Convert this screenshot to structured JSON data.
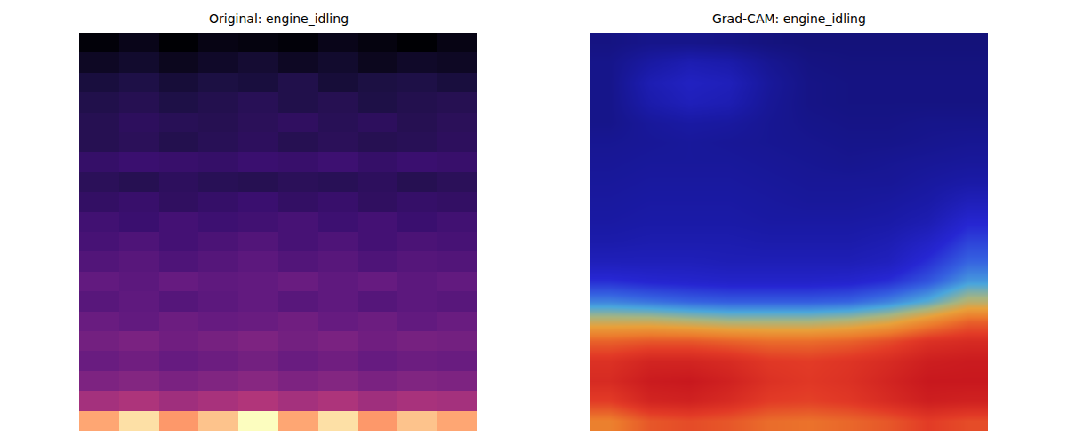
{
  "chart_data": [
    {
      "type": "heatmap",
      "title": "Original: engine_idling",
      "color": "magma",
      "tick_labels": false,
      "cells": [
        [
          0.15,
          0.18,
          0.14,
          0.17,
          0.16,
          0.15,
          0.18,
          0.16,
          0.14,
          0.17
        ],
        [
          0.2,
          0.22,
          0.19,
          0.21,
          0.23,
          0.2,
          0.22,
          0.19,
          0.21,
          0.2
        ],
        [
          0.25,
          0.27,
          0.24,
          0.26,
          0.25,
          0.28,
          0.24,
          0.26,
          0.27,
          0.25
        ],
        [
          0.28,
          0.3,
          0.27,
          0.29,
          0.31,
          0.28,
          0.3,
          0.27,
          0.29,
          0.3
        ],
        [
          0.3,
          0.33,
          0.31,
          0.3,
          0.32,
          0.34,
          0.31,
          0.33,
          0.3,
          0.32
        ],
        [
          0.3,
          0.32,
          0.29,
          0.31,
          0.33,
          0.3,
          0.32,
          0.3,
          0.31,
          0.33
        ],
        [
          0.36,
          0.38,
          0.37,
          0.36,
          0.38,
          0.37,
          0.39,
          0.36,
          0.38,
          0.37
        ],
        [
          0.32,
          0.3,
          0.33,
          0.31,
          0.3,
          0.32,
          0.31,
          0.33,
          0.3,
          0.32
        ],
        [
          0.35,
          0.37,
          0.34,
          0.36,
          0.38,
          0.35,
          0.37,
          0.34,
          0.36,
          0.35
        ],
        [
          0.4,
          0.38,
          0.41,
          0.39,
          0.4,
          0.42,
          0.39,
          0.41,
          0.38,
          0.4
        ],
        [
          0.42,
          0.44,
          0.41,
          0.43,
          0.45,
          0.42,
          0.44,
          0.41,
          0.43,
          0.42
        ],
        [
          0.45,
          0.47,
          0.44,
          0.46,
          0.48,
          0.45,
          0.47,
          0.44,
          0.46,
          0.45
        ],
        [
          0.5,
          0.48,
          0.51,
          0.49,
          0.5,
          0.52,
          0.49,
          0.51,
          0.48,
          0.5
        ],
        [
          0.47,
          0.49,
          0.46,
          0.48,
          0.5,
          0.47,
          0.49,
          0.46,
          0.48,
          0.47
        ],
        [
          0.52,
          0.5,
          0.53,
          0.51,
          0.52,
          0.54,
          0.51,
          0.53,
          0.5,
          0.52
        ],
        [
          0.55,
          0.57,
          0.54,
          0.56,
          0.58,
          0.55,
          0.57,
          0.54,
          0.56,
          0.55
        ],
        [
          0.52,
          0.54,
          0.51,
          0.53,
          0.55,
          0.52,
          0.54,
          0.51,
          0.53,
          0.52
        ],
        [
          0.58,
          0.6,
          0.57,
          0.59,
          0.61,
          0.58,
          0.6,
          0.57,
          0.59,
          0.58
        ],
        [
          0.68,
          0.7,
          0.67,
          0.69,
          0.71,
          0.68,
          0.7,
          0.67,
          0.69,
          0.68
        ],
        [
          0.92,
          0.94,
          0.91,
          0.93,
          0.95,
          0.92,
          0.94,
          0.91,
          0.93,
          0.92
        ]
      ]
    },
    {
      "type": "heatmap",
      "title": "Grad-CAM: engine_idling",
      "color": "jet",
      "tick_labels": false,
      "cells": [
        [
          0.08,
          0.1,
          0.1,
          0.09,
          0.07,
          0.06,
          0.06,
          0.06,
          0.06,
          0.06
        ],
        [
          0.1,
          0.16,
          0.2,
          0.18,
          0.12,
          0.08,
          0.07,
          0.07,
          0.07,
          0.07
        ],
        [
          0.1,
          0.2,
          0.24,
          0.22,
          0.14,
          0.09,
          0.08,
          0.08,
          0.08,
          0.08
        ],
        [
          0.1,
          0.18,
          0.22,
          0.2,
          0.13,
          0.09,
          0.08,
          0.08,
          0.08,
          0.08
        ],
        [
          0.1,
          0.14,
          0.16,
          0.15,
          0.12,
          0.1,
          0.09,
          0.09,
          0.1,
          0.1
        ],
        [
          0.12,
          0.13,
          0.14,
          0.13,
          0.12,
          0.11,
          0.1,
          0.1,
          0.11,
          0.12
        ],
        [
          0.13,
          0.14,
          0.14,
          0.14,
          0.13,
          0.12,
          0.11,
          0.12,
          0.13,
          0.14
        ],
        [
          0.14,
          0.15,
          0.15,
          0.15,
          0.14,
          0.13,
          0.13,
          0.13,
          0.15,
          0.17
        ],
        [
          0.15,
          0.16,
          0.16,
          0.16,
          0.15,
          0.14,
          0.14,
          0.15,
          0.17,
          0.22
        ],
        [
          0.16,
          0.17,
          0.17,
          0.17,
          0.16,
          0.16,
          0.16,
          0.17,
          0.2,
          0.28
        ],
        [
          0.18,
          0.19,
          0.19,
          0.19,
          0.18,
          0.18,
          0.18,
          0.2,
          0.25,
          0.33
        ],
        [
          0.22,
          0.22,
          0.22,
          0.21,
          0.21,
          0.21,
          0.21,
          0.23,
          0.3,
          0.38
        ],
        [
          0.3,
          0.28,
          0.27,
          0.26,
          0.26,
          0.26,
          0.27,
          0.3,
          0.36,
          0.45
        ],
        [
          0.42,
          0.4,
          0.38,
          0.37,
          0.37,
          0.37,
          0.38,
          0.42,
          0.48,
          0.58
        ],
        [
          0.6,
          0.6,
          0.58,
          0.56,
          0.56,
          0.56,
          0.58,
          0.62,
          0.7,
          0.78
        ],
        [
          0.78,
          0.8,
          0.8,
          0.78,
          0.76,
          0.76,
          0.78,
          0.82,
          0.88,
          0.9
        ],
        [
          0.88,
          0.92,
          0.92,
          0.9,
          0.86,
          0.85,
          0.87,
          0.9,
          0.94,
          0.95
        ],
        [
          0.9,
          0.95,
          0.96,
          0.93,
          0.88,
          0.86,
          0.88,
          0.92,
          0.96,
          0.96
        ],
        [
          0.85,
          0.92,
          0.93,
          0.9,
          0.85,
          0.84,
          0.86,
          0.9,
          0.94,
          0.93
        ],
        [
          0.72,
          0.8,
          0.82,
          0.8,
          0.76,
          0.75,
          0.77,
          0.8,
          0.85,
          0.82
        ]
      ]
    }
  ]
}
